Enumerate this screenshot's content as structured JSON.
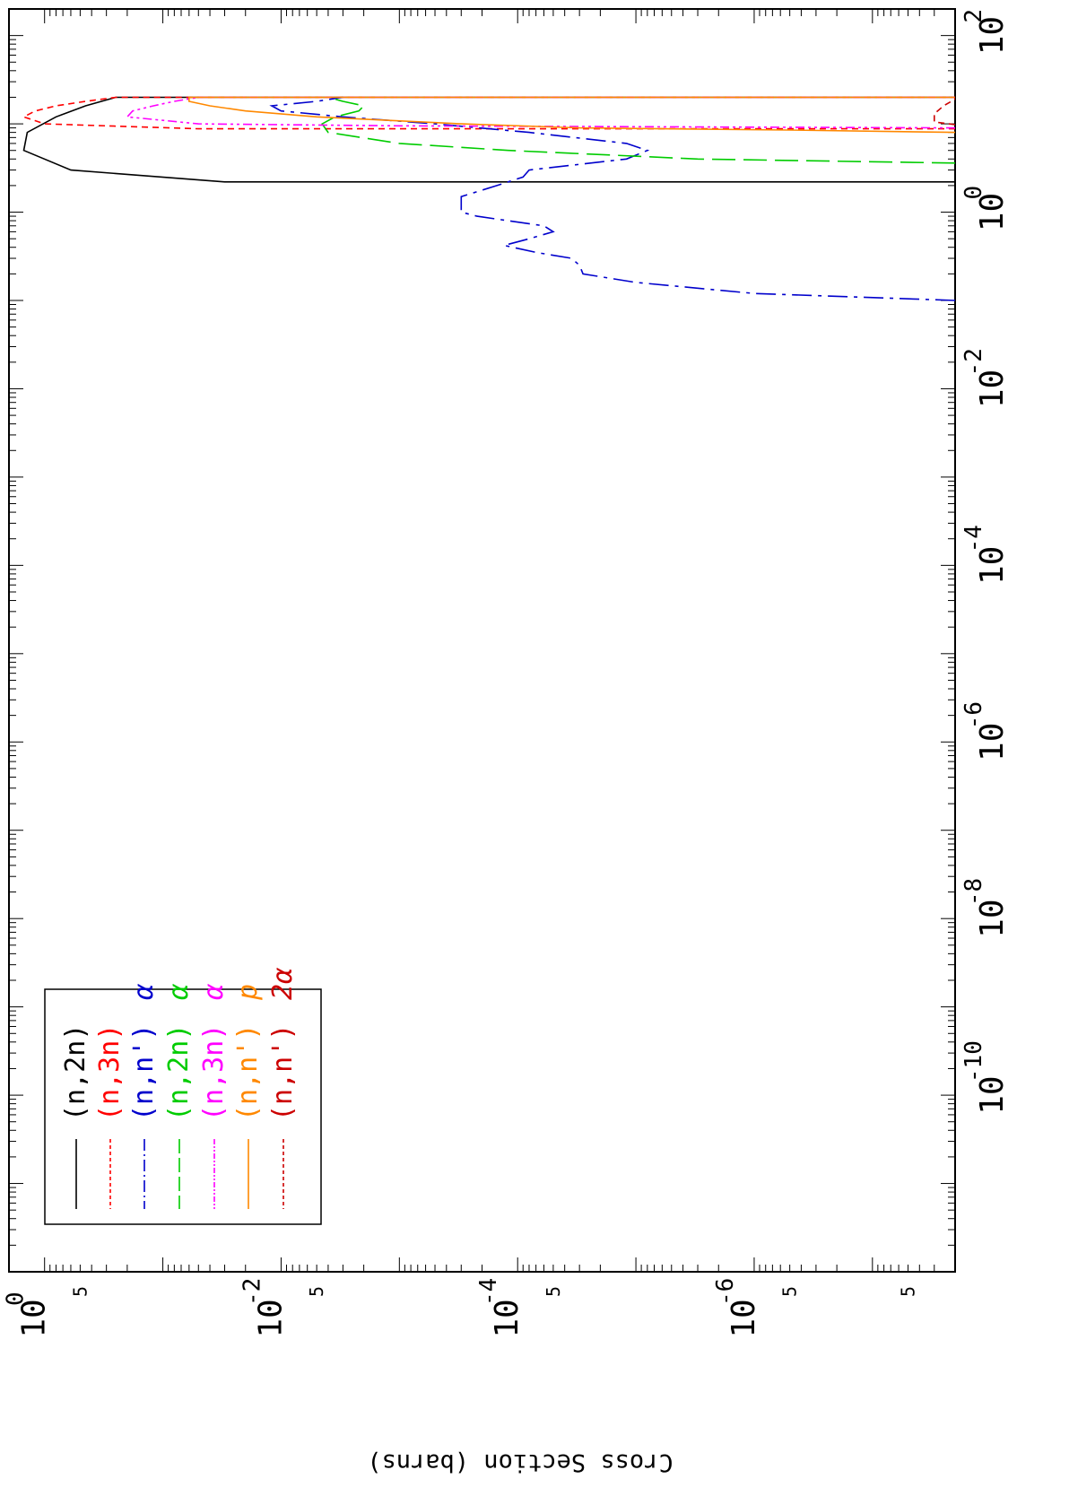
{
  "chart_data": {
    "type": "line",
    "orientation": "rotated-90-clockwise",
    "ylabel": "Cross Section (barns)",
    "x_axis": {
      "scale": "log",
      "range": [
        1e-12,
        200
      ],
      "tick_labels": [
        {
          "value": 1e-10,
          "base": "10",
          "exp": "-10"
        },
        {
          "value": 1e-08,
          "base": "10",
          "exp": "-8"
        },
        {
          "value": 1e-06,
          "base": "10",
          "exp": "-6"
        },
        {
          "value": 0.0001,
          "base": "10",
          "exp": "-4"
        },
        {
          "value": 0.01,
          "base": "10",
          "exp": "-2"
        },
        {
          "value": 1,
          "base": "10",
          "exp": "0"
        },
        {
          "value": 100,
          "base": "10",
          "exp": "2"
        }
      ]
    },
    "y_axis": {
      "scale": "log",
      "range": [
        2e-08,
        2
      ],
      "tick_labels": [
        {
          "value": 1,
          "base": "10",
          "exp": "0"
        },
        {
          "value": 0.01,
          "base": "10",
          "exp": "-2"
        },
        {
          "value": 0.0001,
          "base": "10",
          "exp": "-4"
        },
        {
          "value": 1e-06,
          "base": "10",
          "exp": "-6"
        }
      ],
      "minor_labels": [
        {
          "value": 0.5,
          "text": "5"
        },
        {
          "value": 0.005,
          "text": "5"
        },
        {
          "value": 5e-05,
          "text": "5"
        },
        {
          "value": 5e-07,
          "text": "5"
        },
        {
          "value": 5e-08,
          "text": "5"
        }
      ]
    },
    "legend": {
      "position": "bottom-left",
      "entries": [
        {
          "label": "(n,2n)",
          "suffix": ""
        },
        {
          "label": "(n,3n)",
          "suffix": ""
        },
        {
          "label": "(n,n')",
          "suffix": "α"
        },
        {
          "label": "(n,2n)",
          "suffix": "α"
        },
        {
          "label": "(n,3n)",
          "suffix": "α"
        },
        {
          "label": "(n,n')",
          "suffix": "p"
        },
        {
          "label": "(n,n')",
          "suffix": "2α"
        }
      ]
    },
    "series": [
      {
        "color": "#000000",
        "dash": "",
        "x": [
          2.2,
          2.2,
          3,
          5,
          8,
          12,
          16,
          20,
          20
        ],
        "y": [
          2e-08,
          0.03,
          0.6,
          1.5,
          1.4,
          0.8,
          0.45,
          0.25,
          2e-08
        ]
      },
      {
        "color": "#ff0000",
        "dash": "7,5",
        "x": [
          8.8,
          8.8,
          10,
          12,
          14,
          16,
          18,
          20,
          20
        ],
        "y": [
          2e-08,
          0.05,
          1.0,
          1.5,
          1.2,
          0.8,
          0.45,
          0.25,
          2e-08
        ]
      },
      {
        "color": "#0000cc",
        "dash": "22,7,4,7",
        "x": [
          0.1,
          0.12,
          0.16,
          0.2,
          0.25,
          0.3,
          0.35,
          0.42,
          0.5,
          0.6,
          0.7,
          0.8,
          0.9,
          1.0,
          1.2,
          1.5,
          2.0,
          2.5,
          3.0,
          4.0,
          5.0,
          6.0,
          8.0,
          10.0,
          12.0,
          14.0,
          16.0,
          18.0,
          20.0
        ],
        "y": [
          2e-08,
          1e-06,
          1e-05,
          2.8e-05,
          3e-05,
          3.5e-05,
          7e-05,
          0.00013,
          8e-05,
          5e-05,
          6e-05,
          0.00012,
          0.00022,
          0.0003,
          0.0003,
          0.0003,
          0.00015,
          9e-05,
          8e-05,
          1.2e-05,
          8e-06,
          1.2e-05,
          8e-05,
          0.0005,
          0.003,
          0.01,
          0.012,
          0.005,
          0.003
        ]
      },
      {
        "color": "#00cc00",
        "dash": "26,9",
        "x": [
          3.6,
          4,
          5,
          6,
          8,
          10,
          12,
          14,
          16,
          18,
          20
        ],
        "y": [
          2e-08,
          3e-06,
          0.00012,
          0.001,
          0.004,
          0.0045,
          0.0035,
          0.0022,
          0.002,
          0.003,
          0.004
        ]
      },
      {
        "color": "#ff00ff",
        "dash": "10,4,3,4,3,4",
        "x": [
          9.0,
          9.5,
          10,
          12,
          14,
          16,
          18,
          20,
          20
        ],
        "y": [
          2e-08,
          0.001,
          0.05,
          0.2,
          0.18,
          0.12,
          0.08,
          0.05,
          2e-08
        ]
      },
      {
        "color": "#ff8800",
        "dash": "",
        "x": [
          8.0,
          8.5,
          9.0,
          10.0,
          12.0,
          14.0,
          16.0,
          18.0,
          20.0,
          20.0
        ],
        "y": [
          2e-08,
          5e-07,
          3e-05,
          0.0003,
          0.005,
          0.02,
          0.04,
          0.06,
          0.06,
          2e-08
        ]
      },
      {
        "color": "#cc0000",
        "dash": "7,5",
        "x": [
          9.8,
          10.5,
          13,
          16,
          19,
          20
        ],
        "y": [
          2e-08,
          3e-08,
          3e-08,
          2.5e-08,
          2e-08,
          2e-08
        ]
      }
    ]
  }
}
